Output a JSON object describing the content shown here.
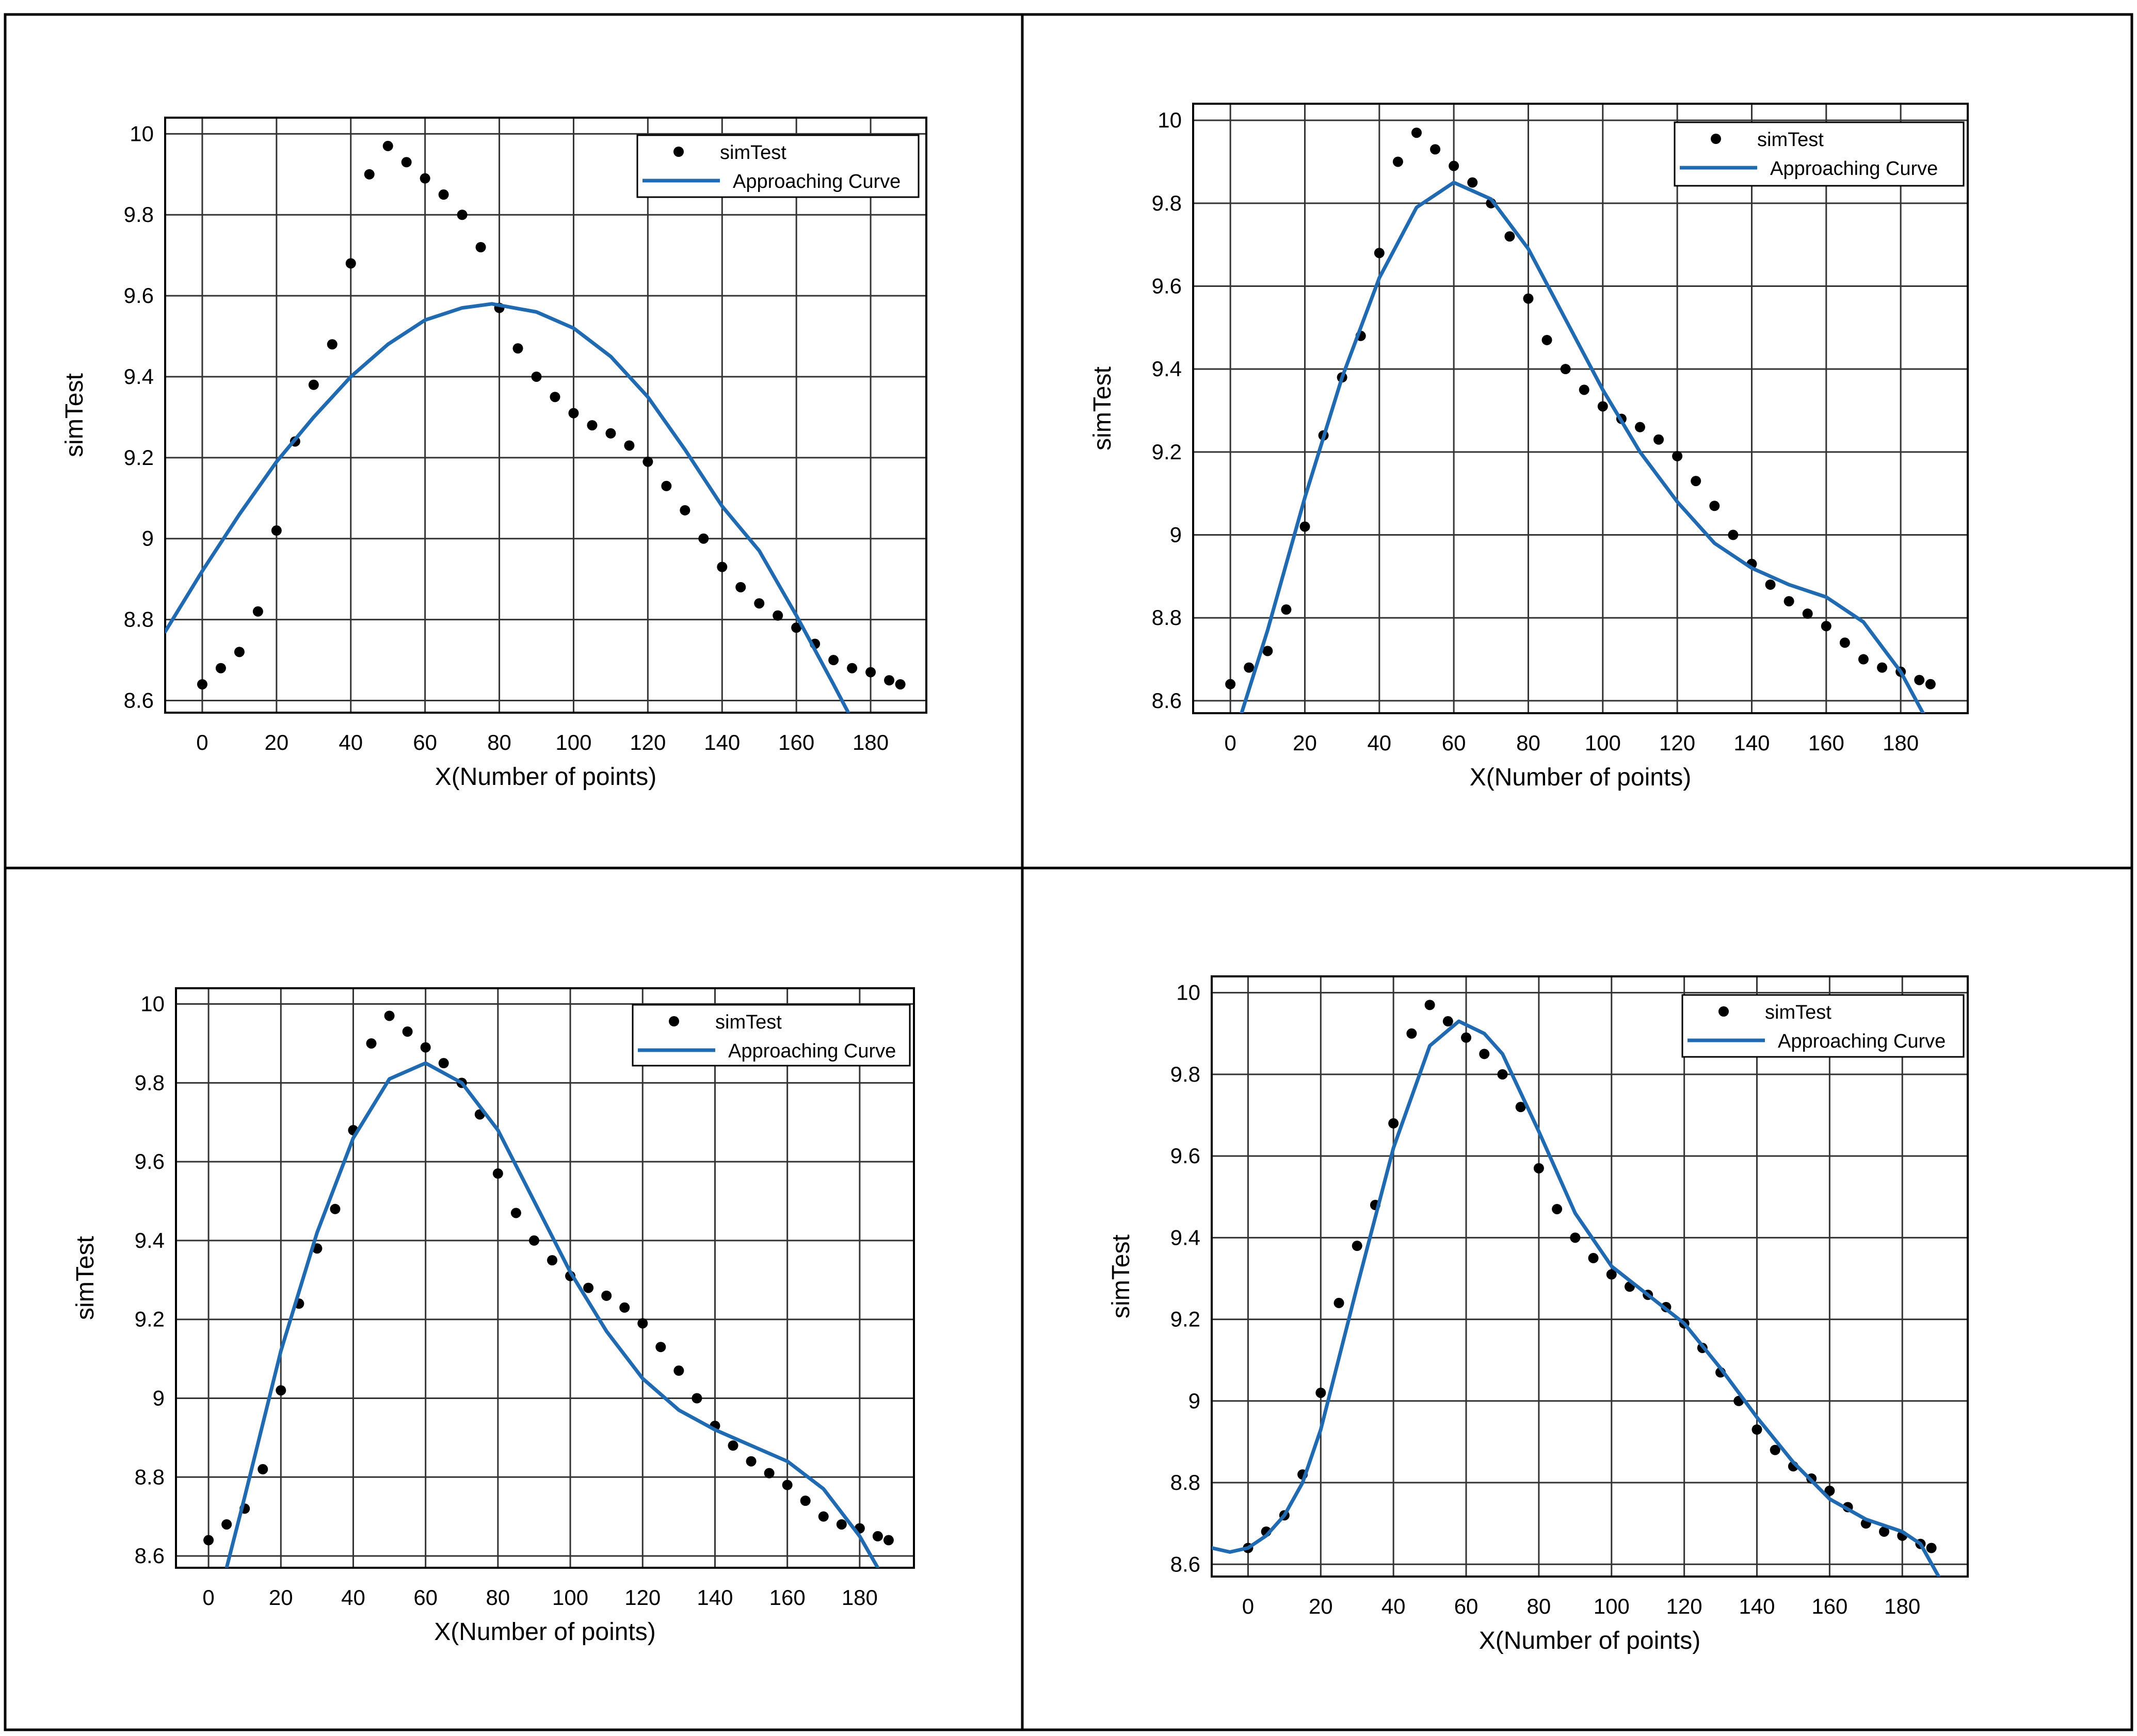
{
  "colors": {
    "fit_line": "#1f6ab1",
    "points": "#000000",
    "grid": "#333333",
    "frame": "#000000"
  },
  "shared": {
    "xlabel": "X(Number of points)",
    "ylabel": "simTest",
    "legend_points": "simTest",
    "legend_curve": "Approaching Curve",
    "x_ticks": [
      "0",
      "20",
      "40",
      "60",
      "80",
      "100",
      "120",
      "140",
      "160",
      "180"
    ],
    "y_ticks": [
      "8.6",
      "8.8",
      "9",
      "9.2",
      "9.4",
      "9.6",
      "9.8",
      "10"
    ]
  },
  "chart_data": [
    {
      "type": "scatter",
      "panel": "top-left",
      "xlabel": "X(Number of points)",
      "ylabel": "simTest",
      "xlim": [
        -10,
        195
      ],
      "ylim": [
        8.57,
        10.04
      ],
      "legend": [
        "simTest",
        "Approaching Curve"
      ],
      "legend_position": "top-right",
      "grid": true,
      "series": [
        {
          "name": "simTest",
          "kind": "points",
          "x": [
            0,
            5,
            10,
            15,
            20,
            25,
            30,
            35,
            40,
            45,
            50,
            55,
            60,
            65,
            70,
            75,
            80,
            85,
            90,
            95,
            100,
            105,
            110,
            115,
            120,
            125,
            130,
            135,
            140,
            145,
            150,
            155,
            160,
            165,
            170,
            175,
            180,
            185,
            188
          ],
          "y": [
            8.64,
            8.68,
            8.72,
            8.82,
            9.02,
            9.24,
            9.38,
            9.48,
            9.68,
            9.9,
            9.97,
            9.93,
            9.89,
            9.85,
            9.8,
            9.72,
            9.57,
            9.47,
            9.4,
            9.35,
            9.31,
            9.28,
            9.26,
            9.23,
            9.19,
            9.13,
            9.07,
            9.0,
            8.93,
            8.88,
            8.84,
            8.81,
            8.78,
            8.74,
            8.7,
            8.68,
            8.67,
            8.65,
            8.64
          ]
        },
        {
          "name": "Approaching Curve",
          "kind": "line",
          "x": [
            -10,
            0,
            10,
            20,
            30,
            40,
            50,
            60,
            70,
            78,
            90,
            100,
            110,
            120,
            130,
            140,
            150,
            160,
            170,
            174
          ],
          "y": [
            8.77,
            8.92,
            9.06,
            9.19,
            9.3,
            9.4,
            9.48,
            9.54,
            9.57,
            9.58,
            9.56,
            9.52,
            9.45,
            9.35,
            9.22,
            9.08,
            8.97,
            8.81,
            8.64,
            8.57
          ]
        }
      ]
    },
    {
      "type": "scatter",
      "panel": "top-right",
      "xlabel": "X(Number of points)",
      "ylabel": "simTest",
      "xlim": [
        -10,
        198
      ],
      "ylim": [
        8.57,
        10.04
      ],
      "legend": [
        "simTest",
        "Approaching Curve"
      ],
      "legend_position": "top-right",
      "grid": true,
      "series": [
        {
          "name": "simTest",
          "kind": "points",
          "x": [
            0,
            5,
            10,
            15,
            20,
            25,
            30,
            35,
            40,
            45,
            50,
            55,
            60,
            65,
            70,
            75,
            80,
            85,
            90,
            95,
            100,
            105,
            110,
            115,
            120,
            125,
            130,
            135,
            140,
            145,
            150,
            155,
            160,
            165,
            170,
            175,
            180,
            185,
            188
          ],
          "y": [
            8.64,
            8.68,
            8.72,
            8.82,
            9.02,
            9.24,
            9.38,
            9.48,
            9.68,
            9.9,
            9.97,
            9.93,
            9.89,
            9.85,
            9.8,
            9.72,
            9.57,
            9.47,
            9.4,
            9.35,
            9.31,
            9.28,
            9.26,
            9.23,
            9.19,
            9.13,
            9.07,
            9.0,
            8.93,
            8.88,
            8.84,
            8.81,
            8.78,
            8.74,
            8.7,
            8.68,
            8.67,
            8.65,
            8.64
          ]
        },
        {
          "name": "Approaching Curve",
          "kind": "line",
          "x": [
            3,
            10,
            20,
            30,
            40,
            50,
            60,
            70,
            80,
            90,
            100,
            110,
            120,
            130,
            140,
            150,
            160,
            170,
            180,
            186
          ],
          "y": [
            8.57,
            8.77,
            9.09,
            9.38,
            9.62,
            9.79,
            9.85,
            9.81,
            9.69,
            9.52,
            9.35,
            9.2,
            9.08,
            8.98,
            8.92,
            8.88,
            8.85,
            8.79,
            8.67,
            8.57
          ]
        }
      ]
    },
    {
      "type": "scatter",
      "panel": "bottom-left",
      "xlabel": "X(Number of points)",
      "ylabel": "simTest",
      "xlim": [
        -9,
        195
      ],
      "ylim": [
        8.57,
        10.04
      ],
      "legend": [
        "simTest",
        "Approaching Curve"
      ],
      "legend_position": "top-right",
      "grid": true,
      "series": [
        {
          "name": "simTest",
          "kind": "points",
          "x": [
            0,
            5,
            10,
            15,
            20,
            25,
            30,
            35,
            40,
            45,
            50,
            55,
            60,
            65,
            70,
            75,
            80,
            85,
            90,
            95,
            100,
            105,
            110,
            115,
            120,
            125,
            130,
            135,
            140,
            145,
            150,
            155,
            160,
            165,
            170,
            175,
            180,
            185,
            188
          ],
          "y": [
            8.64,
            8.68,
            8.72,
            8.82,
            9.02,
            9.24,
            9.38,
            9.48,
            9.68,
            9.9,
            9.97,
            9.93,
            9.89,
            9.85,
            9.8,
            9.72,
            9.57,
            9.47,
            9.4,
            9.35,
            9.31,
            9.28,
            9.26,
            9.23,
            9.19,
            9.13,
            9.07,
            9.0,
            8.93,
            8.88,
            8.84,
            8.81,
            8.78,
            8.74,
            8.7,
            8.68,
            8.67,
            8.65,
            8.64
          ]
        },
        {
          "name": "Approaching Curve",
          "kind": "line",
          "x": [
            5,
            10,
            20,
            30,
            40,
            50,
            60,
            70,
            80,
            90,
            100,
            110,
            120,
            130,
            140,
            150,
            160,
            170,
            180,
            185
          ],
          "y": [
            8.57,
            8.75,
            9.12,
            9.42,
            9.66,
            9.81,
            9.85,
            9.8,
            9.68,
            9.5,
            9.32,
            9.17,
            9.05,
            8.97,
            8.92,
            8.88,
            8.84,
            8.77,
            8.65,
            8.57
          ]
        }
      ]
    },
    {
      "type": "scatter",
      "panel": "bottom-right",
      "xlabel": "X(Number of points)",
      "ylabel": "simTest",
      "xlim": [
        -10,
        198
      ],
      "ylim": [
        8.57,
        10.04
      ],
      "legend": [
        "simTest",
        "Approaching Curve"
      ],
      "legend_position": "top-right",
      "grid": true,
      "series": [
        {
          "name": "simTest",
          "kind": "points",
          "x": [
            0,
            5,
            10,
            15,
            20,
            25,
            30,
            35,
            40,
            45,
            50,
            55,
            60,
            65,
            70,
            75,
            80,
            85,
            90,
            95,
            100,
            105,
            110,
            115,
            120,
            125,
            130,
            135,
            140,
            145,
            150,
            155,
            160,
            165,
            170,
            175,
            180,
            185,
            188
          ],
          "y": [
            8.64,
            8.68,
            8.72,
            8.82,
            9.02,
            9.24,
            9.38,
            9.48,
            9.68,
            9.9,
            9.97,
            9.93,
            9.89,
            9.85,
            9.8,
            9.72,
            9.57,
            9.47,
            9.4,
            9.35,
            9.31,
            9.28,
            9.26,
            9.23,
            9.19,
            9.13,
            9.07,
            9.0,
            8.93,
            8.88,
            8.84,
            8.81,
            8.78,
            8.74,
            8.7,
            8.68,
            8.67,
            8.65,
            8.64
          ]
        },
        {
          "name": "Approaching Curve",
          "kind": "line",
          "x": [
            -10,
            -5,
            0,
            5,
            10,
            15,
            20,
            30,
            40,
            50,
            58,
            65,
            70,
            80,
            90,
            100,
            110,
            120,
            130,
            140,
            150,
            160,
            170,
            180,
            185,
            190
          ],
          "y": [
            8.64,
            8.63,
            8.64,
            8.67,
            8.72,
            8.8,
            8.93,
            9.28,
            9.62,
            9.87,
            9.93,
            9.9,
            9.85,
            9.66,
            9.46,
            9.33,
            9.26,
            9.19,
            9.08,
            8.96,
            8.85,
            8.76,
            8.71,
            8.68,
            8.65,
            8.57
          ]
        }
      ]
    }
  ]
}
